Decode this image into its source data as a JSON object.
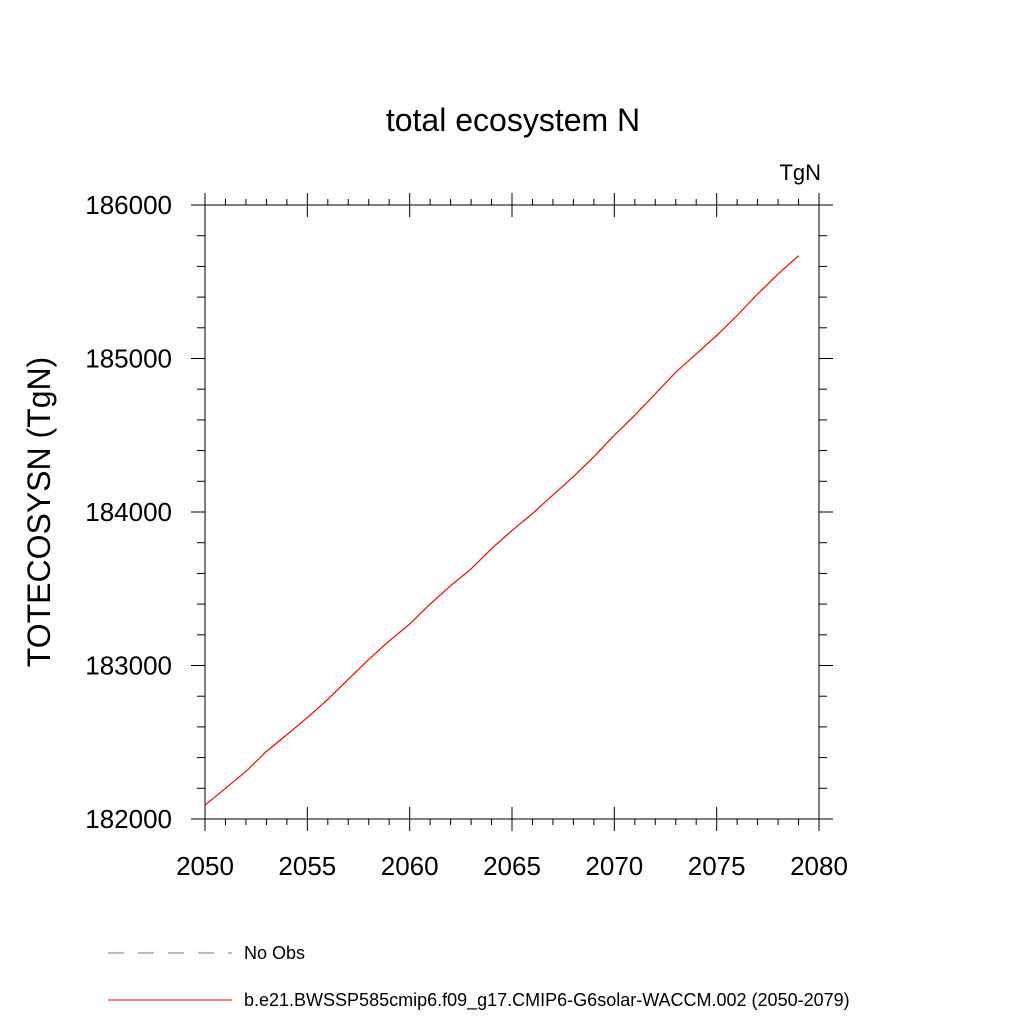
{
  "chart_data": {
    "type": "line",
    "title": "total ecosystem N",
    "units_label": "TgN",
    "xlabel": "",
    "ylabel": "TOTECOSYSN  (TgN)",
    "xlim": [
      2050,
      2080
    ],
    "ylim": [
      182000,
      186000
    ],
    "x_ticks": [
      2050,
      2055,
      2060,
      2065,
      2070,
      2075,
      2080
    ],
    "x_tick_labels": [
      "2050",
      "2055",
      "2060",
      "2065",
      "2070",
      "2075",
      "2080"
    ],
    "y_ticks": [
      182000,
      183000,
      184000,
      185000,
      186000
    ],
    "y_tick_labels": [
      "182000",
      "183000",
      "184000",
      "185000",
      "186000"
    ],
    "grid": false,
    "legend_position": "bottom",
    "series": [
      {
        "name": "b.e21.BWSSP585cmip6.f09_g17.CMIP6-G6solar-WACCM.002 (2050-2079)",
        "color": "#ff0000",
        "style": "solid",
        "x": [
          2050,
          2051,
          2052,
          2053,
          2054,
          2055,
          2056,
          2057,
          2058,
          2059,
          2060,
          2061,
          2062,
          2063,
          2064,
          2065,
          2066,
          2067,
          2068,
          2069,
          2070,
          2071,
          2072,
          2073,
          2074,
          2075,
          2076,
          2077,
          2078,
          2079
        ],
        "y": [
          182090,
          182200,
          182310,
          182440,
          182550,
          182660,
          182780,
          182910,
          183040,
          183160,
          183270,
          183400,
          183520,
          183630,
          183760,
          183880,
          183990,
          184110,
          184230,
          184360,
          184500,
          184630,
          184770,
          184910,
          185030,
          185150,
          185280,
          185420,
          185550,
          185670
        ]
      }
    ],
    "legend": [
      {
        "label": "No Obs",
        "color": "#7b6fb8",
        "style": "dashed"
      },
      {
        "label": "b.e21.BWSSP585cmip6.f09_g17.CMIP6-G6solar-WACCM.002 (2050-2079)",
        "color": "#ff0000",
        "style": "solid"
      }
    ]
  }
}
